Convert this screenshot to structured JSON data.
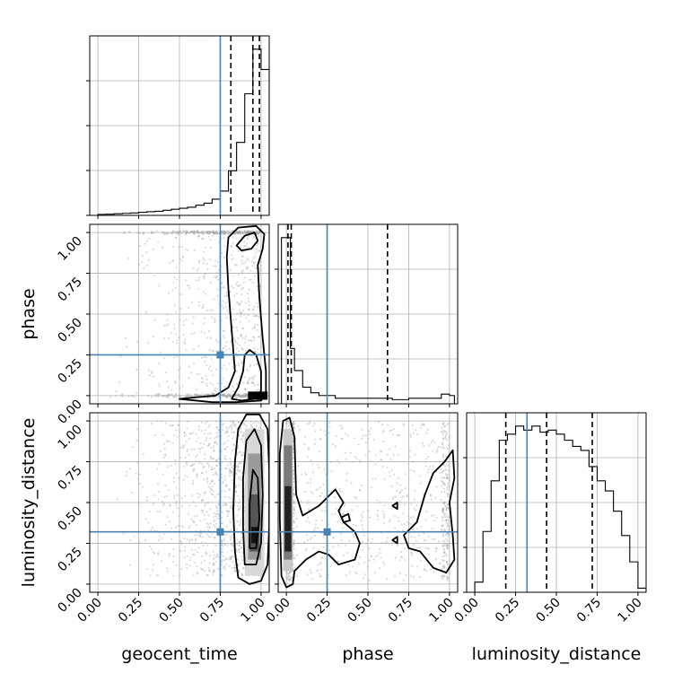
{
  "chart_data": {
    "type": "corner",
    "parameters": [
      "geocent_time",
      "phase",
      "luminosity_distance"
    ],
    "axis_labels": {
      "geocent_time": "geocent_time",
      "phase": "phase",
      "luminosity_distance": "luminosity_distance"
    },
    "tick_labels": [
      "0.00",
      "0.25",
      "0.50",
      "0.75",
      "1.00"
    ],
    "tick_values": [
      0,
      0.25,
      0.5,
      0.75,
      1.0
    ],
    "axis_range": [
      -0.05,
      1.05
    ],
    "grid": true,
    "truths": {
      "geocent_time": 0.75,
      "phase": 0.25,
      "luminosity_distance": 0.32
    },
    "colors": {
      "truth": "#4682b4",
      "histogram": "#000000",
      "scatter": "#9a9a9a",
      "contour": "#000000",
      "grid": "#b0b0b0"
    },
    "histograms": {
      "geocent_time": {
        "bin_edges": [
          0.0,
          0.05,
          0.1,
          0.15,
          0.2,
          0.25,
          0.3,
          0.35,
          0.4,
          0.45,
          0.5,
          0.55,
          0.6,
          0.65,
          0.7,
          0.75,
          0.8,
          0.85,
          0.9,
          0.95,
          1.0,
          1.05
        ],
        "counts": [
          0.5,
          0.6,
          0.8,
          1.0,
          1.2,
          1.5,
          1.8,
          2.0,
          2.5,
          3.0,
          3.5,
          4.0,
          5.0,
          6.0,
          8.0,
          12.0,
          22.0,
          36.0,
          60.0,
          82.0,
          72.0
        ],
        "quantiles": [
          0.815,
          0.95,
          0.99
        ]
      },
      "phase": {
        "bin_edges": [
          -0.03,
          0.0,
          0.025,
          0.05,
          0.1,
          0.15,
          0.2,
          0.25,
          0.3,
          0.35,
          0.4,
          0.45,
          0.5,
          0.55,
          0.6,
          0.65,
          0.7,
          0.75,
          0.8,
          0.85,
          0.9,
          0.95,
          1.0,
          1.03
        ],
        "counts": [
          60,
          60,
          20,
          12,
          6,
          4,
          3,
          3,
          2,
          2,
          2,
          2,
          2,
          2,
          2,
          1.5,
          1.5,
          2,
          2,
          2,
          2,
          3.5,
          3
        ],
        "quantiles": [
          0.01,
          0.03,
          0.62
        ]
      },
      "luminosity_distance": {
        "bin_edges": [
          -0.05,
          0.0,
          0.05,
          0.1,
          0.15,
          0.2,
          0.25,
          0.3,
          0.35,
          0.4,
          0.45,
          0.5,
          0.55,
          0.6,
          0.65,
          0.7,
          0.75,
          0.8,
          0.85,
          0.9,
          0.95,
          1.0,
          1.05
        ],
        "counts": [
          0,
          5,
          30,
          55,
          75,
          78,
          82,
          80,
          82,
          79,
          80,
          78,
          75,
          72,
          70,
          62,
          55,
          50,
          40,
          28,
          15,
          2
        ],
        "quantiles": [
          0.19,
          0.44,
          0.72
        ]
      }
    },
    "contours": [
      {
        "x": "geocent_time",
        "y": "phase",
        "levels": [
          {
            "points": [
              [
                0.5,
                -0.02
              ],
              [
                0.6,
                -0.01
              ],
              [
                0.72,
                0.0
              ],
              [
                0.8,
                0.05
              ],
              [
                0.84,
                0.15
              ],
              [
                0.82,
                0.4
              ],
              [
                0.8,
                0.65
              ],
              [
                0.79,
                0.85
              ],
              [
                0.8,
                0.97
              ],
              [
                0.86,
                1.03
              ],
              [
                0.97,
                1.04
              ],
              [
                1.02,
                0.99
              ],
              [
                1.01,
                0.9
              ],
              [
                0.98,
                0.8
              ],
              [
                0.99,
                0.6
              ],
              [
                1.01,
                0.35
              ],
              [
                1.03,
                0.15
              ],
              [
                1.03,
                0.01
              ],
              [
                1.0,
                -0.03
              ],
              [
                0.85,
                -0.04
              ],
              [
                0.7,
                -0.04
              ]
            ]
          },
          {
            "points": [
              [
                0.82,
                -0.02
              ],
              [
                0.86,
                0.05
              ],
              [
                0.89,
                0.15
              ],
              [
                0.9,
                0.25
              ],
              [
                0.93,
                0.28
              ],
              [
                0.97,
                0.25
              ],
              [
                1.0,
                0.15
              ],
              [
                1.0,
                0.03
              ],
              [
                0.96,
                -0.02
              ],
              [
                0.88,
                -0.03
              ]
            ]
          },
          {
            "points": [
              [
                0.85,
                0.92
              ],
              [
                0.9,
                0.98
              ],
              [
                0.96,
                1.0
              ],
              [
                0.98,
                0.95
              ],
              [
                0.94,
                0.9
              ],
              [
                0.88,
                0.89
              ]
            ]
          }
        ],
        "density_blocks": [
          {
            "x0": 0.92,
            "x1": 1.04,
            "y0": -0.025,
            "y1": 0.025,
            "gray": "#000000"
          }
        ],
        "scatter_region": {
          "x": [
            0.0,
            1.0
          ],
          "y": [
            -0.05,
            1.05
          ],
          "n": 1100
        }
      },
      {
        "x": "geocent_time",
        "y": "luminosity_distance",
        "levels": [
          {
            "points": [
              [
                0.86,
                0.04
              ],
              [
                0.84,
                0.2
              ],
              [
                0.83,
                0.45
              ],
              [
                0.84,
                0.75
              ],
              [
                0.86,
                0.95
              ],
              [
                0.91,
                1.04
              ],
              [
                0.99,
                1.04
              ],
              [
                1.04,
                0.95
              ],
              [
                1.05,
                0.7
              ],
              [
                1.05,
                0.35
              ],
              [
                1.04,
                0.12
              ],
              [
                1.0,
                0.02
              ],
              [
                0.93,
                0.0
              ]
            ]
          },
          {
            "points": [
              [
                0.9,
                0.12
              ],
              [
                0.89,
                0.35
              ],
              [
                0.89,
                0.65
              ],
              [
                0.91,
                0.88
              ],
              [
                0.96,
                0.95
              ],
              [
                1.0,
                0.85
              ],
              [
                1.01,
                0.55
              ],
              [
                1.0,
                0.25
              ],
              [
                0.97,
                0.12
              ]
            ]
          },
          {
            "points": [
              [
                0.93,
                0.22
              ],
              [
                0.93,
                0.5
              ],
              [
                0.95,
                0.7
              ],
              [
                0.98,
                0.65
              ],
              [
                0.99,
                0.4
              ],
              [
                0.97,
                0.22
              ]
            ]
          }
        ],
        "density_blocks": [
          {
            "x0": 0.9,
            "x1": 1.02,
            "y0": 0.05,
            "y1": 0.95,
            "gray": "#d8d8d8"
          },
          {
            "x0": 0.92,
            "x1": 1.0,
            "y0": 0.15,
            "y1": 0.8,
            "gray": "#9a9a9a"
          },
          {
            "x0": 0.93,
            "x1": 0.99,
            "y0": 0.2,
            "y1": 0.55,
            "gray": "#555555"
          },
          {
            "x0": 0.94,
            "x1": 0.98,
            "y0": 0.25,
            "y1": 0.35,
            "gray": "#111111"
          }
        ],
        "scatter_region": {
          "x": [
            0.0,
            1.0
          ],
          "y": [
            0.0,
            1.0
          ],
          "n": 1100
        }
      },
      {
        "x": "phase",
        "y": "luminosity_distance",
        "levels": [
          {
            "points": [
              [
                -0.03,
                0.05
              ],
              [
                -0.04,
                0.4
              ],
              [
                -0.04,
                0.8
              ],
              [
                -0.02,
                1.0
              ],
              [
                0.02,
                1.02
              ],
              [
                0.05,
                0.9
              ],
              [
                0.06,
                0.55
              ],
              [
                0.1,
                0.42
              ],
              [
                0.2,
                0.48
              ],
              [
                0.3,
                0.58
              ],
              [
                0.35,
                0.5
              ],
              [
                0.32,
                0.45
              ],
              [
                0.35,
                0.38
              ],
              [
                0.42,
                0.32
              ],
              [
                0.45,
                0.25
              ],
              [
                0.42,
                0.15
              ],
              [
                0.32,
                0.12
              ],
              [
                0.26,
                0.18
              ],
              [
                0.2,
                0.2
              ],
              [
                0.12,
                0.15
              ],
              [
                0.05,
                0.08
              ],
              [
                0.04,
                0.0
              ],
              [
                0.0,
                -0.02
              ]
            ]
          },
          {
            "points": [
              [
                0.72,
                0.3
              ],
              [
                0.8,
                0.38
              ],
              [
                0.85,
                0.55
              ],
              [
                0.9,
                0.68
              ],
              [
                0.97,
                0.75
              ],
              [
                1.02,
                0.82
              ],
              [
                1.03,
                0.65
              ],
              [
                1.0,
                0.5
              ],
              [
                1.02,
                0.3
              ],
              [
                1.03,
                0.15
              ],
              [
                0.98,
                0.07
              ],
              [
                0.9,
                0.1
              ],
              [
                0.82,
                0.2
              ],
              [
                0.75,
                0.22
              ]
            ]
          },
          {
            "points": [
              [
                0.34,
                0.41
              ],
              [
                0.38,
                0.43
              ],
              [
                0.39,
                0.39
              ],
              [
                0.35,
                0.38
              ]
            ]
          },
          {
            "points": [
              [
                0.65,
                0.48
              ],
              [
                0.68,
                0.5
              ],
              [
                0.68,
                0.46
              ]
            ]
          },
          {
            "points": [
              [
                0.65,
                0.27
              ],
              [
                0.68,
                0.29
              ],
              [
                0.68,
                0.25
              ]
            ]
          }
        ],
        "density_blocks": [
          {
            "x0": -0.02,
            "x1": 0.04,
            "y0": 0.08,
            "y1": 0.95,
            "gray": "#c8c8c8"
          },
          {
            "x0": -0.015,
            "x1": 0.035,
            "y0": 0.15,
            "y1": 0.85,
            "gray": "#7a7a7a"
          },
          {
            "x0": -0.01,
            "x1": 0.03,
            "y0": 0.2,
            "y1": 0.6,
            "gray": "#222222"
          }
        ],
        "scatter_region": {
          "x": [
            0.0,
            1.0
          ],
          "y": [
            0.0,
            1.0
          ],
          "n": 1100
        }
      }
    ]
  }
}
